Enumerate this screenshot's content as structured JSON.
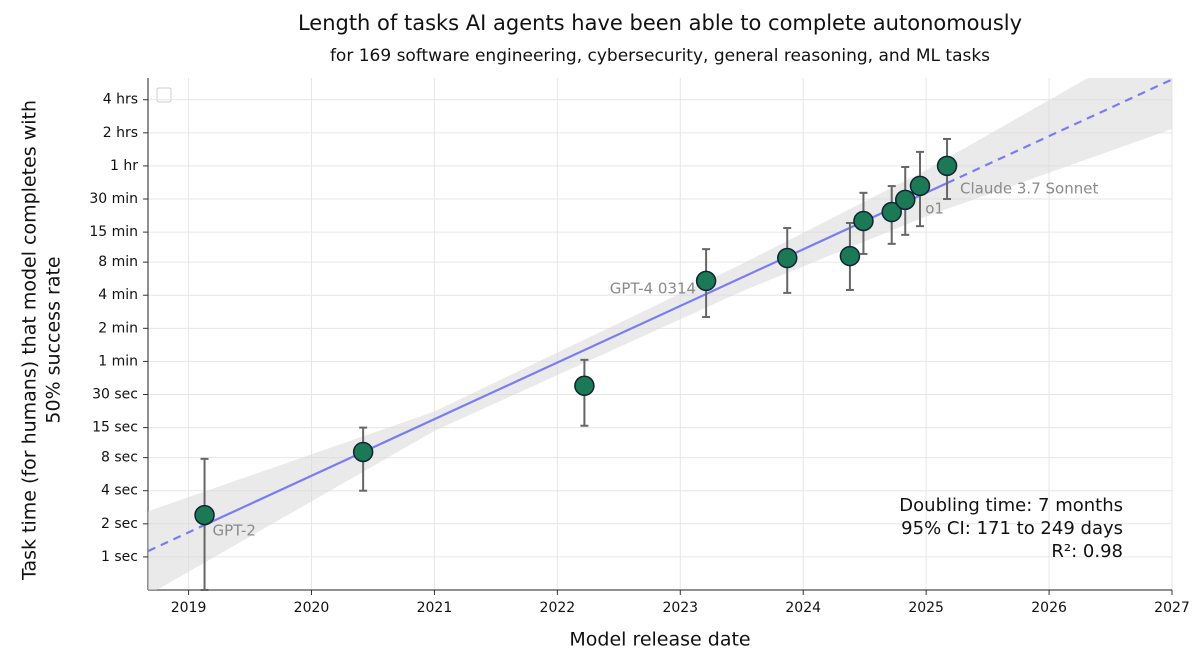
{
  "chart_data": {
    "type": "scatter",
    "title": "Length of tasks AI agents have been able to complete autonomously",
    "subtitle": "for 169 software engineering, cybersecurity, general reasoning, and ML tasks",
    "xlabel": "Model release date",
    "ylabel": [
      "Task time (for humans) that model completes with",
      "50% success rate"
    ],
    "x": [
      2019.13,
      2020.42,
      2022.22,
      2023.21,
      2023.87,
      2024.38,
      2024.49,
      2024.72,
      2024.83,
      2024.95,
      2025.17
    ],
    "series": [
      {
        "color": "#1b7a55",
        "values": [
          2.4,
          9,
          36,
          324,
          523,
          545,
          1136,
          1370,
          1770,
          2370,
          3600
        ],
        "err_low": [
          0.5,
          4,
          15.6,
          152,
          252,
          268,
          570,
          704,
          850,
          1020,
          1800
        ],
        "err_high": [
          7.8,
          15,
          62,
          630,
          980,
          1090,
          2050,
          2360,
          3520,
          4830,
          6330
        ],
        "labels": [
          "GPT-2",
          null,
          null,
          "GPT-4 0314",
          null,
          null,
          null,
          null,
          "o1",
          null,
          "Claude 3.7 Sonnet"
        ]
      }
    ],
    "trend": {
      "x": [
        2018.67,
        2027
      ],
      "values": [
        1.13,
        22000
      ],
      "color": "#7b7bf2"
    },
    "ci_band": {
      "x": [
        2018.67,
        2021,
        2023.5,
        2025,
        2027
      ],
      "upper": [
        2.6,
        21,
        460,
        3300,
        62000
      ],
      "lower": [
        0.45,
        14,
        260,
        1250,
        7800
      ]
    },
    "annotations": [
      "Doubling time: 7 months",
      "95% CI: 171 to 249 days",
      "R²: 0.98"
    ],
    "xlim": [
      2018.67,
      2027
    ],
    "ylim": [
      0.5,
      22700
    ],
    "log_y": true,
    "grid": true,
    "xticks": [
      2019,
      2020,
      2021,
      2022,
      2023,
      2024,
      2025,
      2026,
      2027
    ],
    "yticks": [
      {
        "value": 1,
        "label": "1 sec"
      },
      {
        "value": 2,
        "label": "2 sec"
      },
      {
        "value": 4,
        "label": "4 sec"
      },
      {
        "value": 8,
        "label": "8 sec"
      },
      {
        "value": 15,
        "label": "15 sec"
      },
      {
        "value": 30,
        "label": "30 sec"
      },
      {
        "value": 60,
        "label": "1 min"
      },
      {
        "value": 120,
        "label": "2 min"
      },
      {
        "value": 240,
        "label": "4 min"
      },
      {
        "value": 480,
        "label": "8 min"
      },
      {
        "value": 900,
        "label": "15 min"
      },
      {
        "value": 1800,
        "label": "30 min"
      },
      {
        "value": 3600,
        "label": "1 hr"
      },
      {
        "value": 7200,
        "label": "2 hrs"
      },
      {
        "value": 14400,
        "label": "4 hrs"
      }
    ]
  }
}
